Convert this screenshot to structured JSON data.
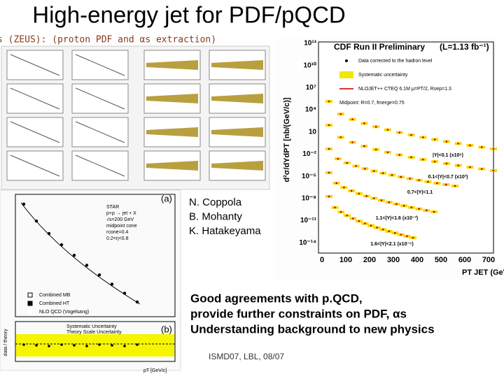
{
  "title": "High-energy jet for PDF/pQCD",
  "zeus_caption": "s (ZEUS):  (proton PDF and αs extraction)",
  "authors": [
    "N. Coppola",
    "B. Mohanty",
    "K. Hatakeyama"
  ],
  "bullets": [
    "Good agreements with p.QCD,",
    "provide further constraints on PDF, αs",
    "Understanding background to new physics"
  ],
  "footer": "ISMD07, LBL, 08/07",
  "cdf_plot": {
    "title": "CDF Run II Preliminary",
    "lumi": "(L=1.13 fb⁻¹)",
    "legend": [
      "Data corrected to the hadron level",
      "Systematic uncertainty",
      "NLOJET++ CTEQ 6.1M μ=PT/2, Rsep=1.3",
      "Midpoint: R=0.7, fmerge=0.75"
    ],
    "y_label": "d²σ/dYdPT [nb/(GeV/c)]",
    "x_label": "PT JET (GeV/c)",
    "y_ticks": [
      "10¹³",
      "10¹⁰",
      "10⁷",
      "10⁴",
      "10",
      "10⁻²",
      "10⁻⁵",
      "10⁻⁸",
      "10⁻¹¹",
      "10⁻¹⁴"
    ],
    "x_ticks": [
      "0",
      "100",
      "200",
      "300",
      "400",
      "500",
      "600",
      "700"
    ],
    "region_labels": [
      "|Y|<0.1 (x10⁶)",
      "0.1<|Y|<0.7 (x10³)",
      "0.7<|Y|<1.1",
      "1.1<|Y|<1.6 (x10⁻³)",
      "1.6<|Y|<2.1 (x10⁻⁶)"
    ]
  },
  "star_plot": {
    "panel_a": "(a)",
    "panel_b": "(b)",
    "info": [
      "STAR",
      "p+p → jet + X",
      "√s=200 GeV",
      "midpoint cone",
      "rcone=0.4",
      "0.2<η<0.8"
    ],
    "legend": [
      "Combined MB",
      "Combined HT",
      "NLO QCD (Vogelsang)"
    ],
    "band_legend": [
      "Systematic Uncertainty",
      "Theory Scale Uncertainty"
    ],
    "y_label": "data / theory",
    "x_label": "pT [GeV/c]"
  }
}
